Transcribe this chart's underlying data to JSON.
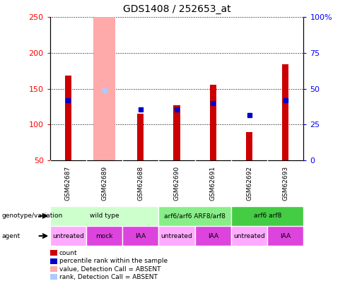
{
  "title": "GDS1408 / 252653_at",
  "samples": [
    "GSM62687",
    "GSM62689",
    "GSM62688",
    "GSM62690",
    "GSM62691",
    "GSM62692",
    "GSM62693"
  ],
  "count_values": [
    168,
    null,
    115,
    127,
    155,
    89,
    184
  ],
  "absent_bar_value": 250,
  "absent_rank_value": 148,
  "absent_sample_index": 1,
  "percentile_marker_values": [
    134,
    null,
    121,
    121,
    130,
    113,
    134
  ],
  "ylim_left": [
    50,
    250
  ],
  "ylim_right": [
    0,
    100
  ],
  "yticks_left": [
    50,
    100,
    150,
    200,
    250
  ],
  "yticks_right": [
    0,
    25,
    50,
    75,
    100
  ],
  "ytick_labels_right": [
    "0",
    "25",
    "50",
    "75",
    "100%"
  ],
  "bar_color_red": "#cc0000",
  "bar_color_absent": "#ffaaaa",
  "rank_absent_color": "#aaccff",
  "percentile_color": "#0000cc",
  "genotype_groups": [
    {
      "label": "wild type",
      "start": 0,
      "end": 3,
      "color": "#ccffcc"
    },
    {
      "label": "arf6/arf6 ARF8/arf8",
      "start": 3,
      "end": 5,
      "color": "#88ee88"
    },
    {
      "label": "arf6 arf8",
      "start": 5,
      "end": 7,
      "color": "#44cc44"
    }
  ],
  "agent_groups": [
    {
      "label": "untreated",
      "start": 0,
      "end": 1,
      "color": "#ffaaff"
    },
    {
      "label": "mock",
      "start": 1,
      "end": 2,
      "color": "#dd44dd"
    },
    {
      "label": "IAA",
      "start": 2,
      "end": 3,
      "color": "#dd44dd"
    },
    {
      "label": "untreated",
      "start": 3,
      "end": 4,
      "color": "#ffaaff"
    },
    {
      "label": "IAA",
      "start": 4,
      "end": 5,
      "color": "#dd44dd"
    },
    {
      "label": "untreated",
      "start": 5,
      "end": 6,
      "color": "#ffaaff"
    },
    {
      "label": "IAA",
      "start": 6,
      "end": 7,
      "color": "#dd44dd"
    }
  ],
  "legend_items": [
    {
      "color": "#cc0000",
      "label": "count"
    },
    {
      "color": "#0000cc",
      "label": "percentile rank within the sample"
    },
    {
      "color": "#ffaaaa",
      "label": "value, Detection Call = ABSENT"
    },
    {
      "color": "#aaccff",
      "label": "rank, Detection Call = ABSENT"
    }
  ],
  "chart_bg": "#ffffff"
}
